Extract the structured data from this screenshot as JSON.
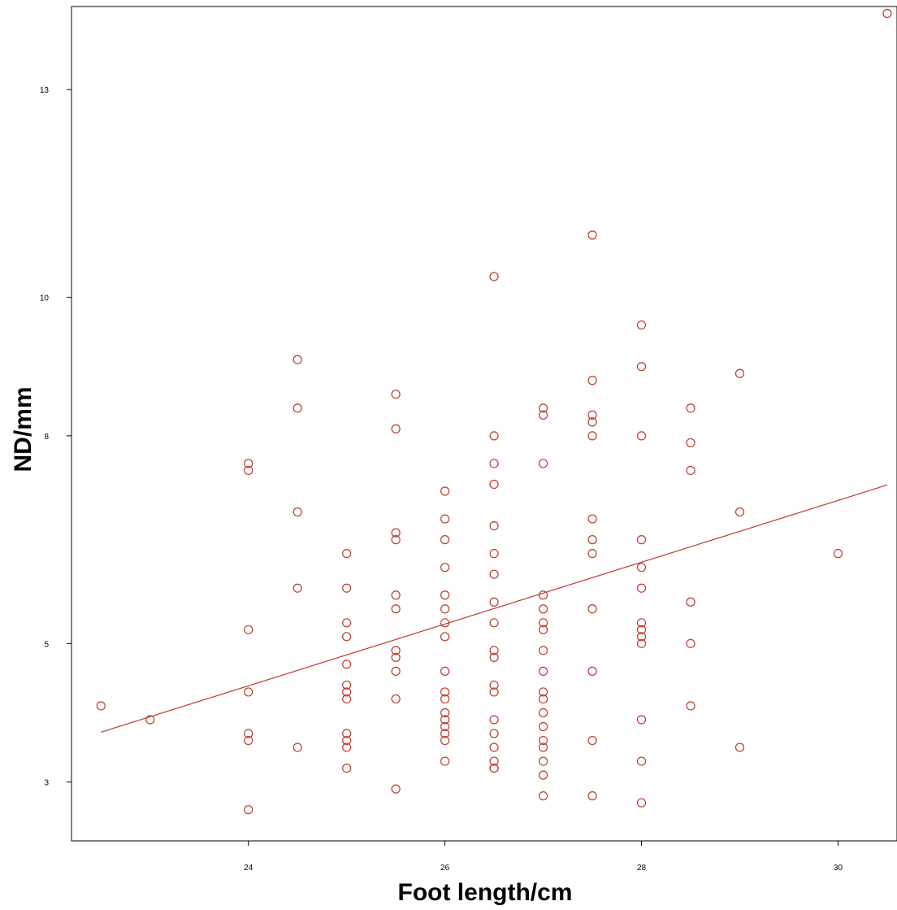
{
  "chart_data": {
    "type": "scatter",
    "title": "",
    "xlabel": "Foot length/cm",
    "ylabel": "ND/mm",
    "xlim": [
      22.2,
      30.6
    ],
    "ylim": [
      2.15,
      14.2
    ],
    "x_ticks": [
      24,
      26,
      28,
      30
    ],
    "y_ticks": [
      3,
      5,
      8,
      10,
      13
    ],
    "x_tick_labels": [
      "24",
      "26",
      "28",
      "30"
    ],
    "y_tick_labels": [
      "3",
      "5",
      "8",
      "10",
      "13"
    ],
    "grid": false,
    "legend": "none",
    "marker_color": "#c0392b",
    "line_color": "#c0392b",
    "fit_line": {
      "x": [
        22.5,
        30.5
      ],
      "y": [
        3.72,
        7.29
      ]
    },
    "points": [
      [
        22.5,
        4.1
      ],
      [
        23.0,
        3.9
      ],
      [
        24.0,
        7.6
      ],
      [
        24.0,
        7.5
      ],
      [
        24.0,
        5.2
      ],
      [
        24.0,
        4.3
      ],
      [
        24.0,
        3.7
      ],
      [
        24.0,
        3.6
      ],
      [
        24.0,
        2.6
      ],
      [
        24.5,
        9.1
      ],
      [
        24.5,
        8.4
      ],
      [
        24.5,
        6.9
      ],
      [
        24.5,
        5.8
      ],
      [
        24.5,
        3.5
      ],
      [
        25.0,
        6.3
      ],
      [
        25.0,
        5.8
      ],
      [
        25.0,
        5.3
      ],
      [
        25.0,
        5.1
      ],
      [
        25.0,
        4.7
      ],
      [
        25.0,
        4.4
      ],
      [
        25.0,
        4.3
      ],
      [
        25.0,
        4.2
      ],
      [
        25.0,
        3.7
      ],
      [
        25.0,
        3.6
      ],
      [
        25.0,
        3.5
      ],
      [
        25.0,
        3.2
      ],
      [
        25.5,
        8.6
      ],
      [
        25.5,
        8.1
      ],
      [
        25.5,
        6.6
      ],
      [
        25.5,
        6.5
      ],
      [
        25.5,
        5.7
      ],
      [
        25.5,
        5.5
      ],
      [
        25.5,
        4.9
      ],
      [
        25.5,
        4.8
      ],
      [
        25.5,
        4.6
      ],
      [
        25.5,
        4.2
      ],
      [
        25.5,
        2.9
      ],
      [
        26.0,
        7.2
      ],
      [
        26.0,
        6.8
      ],
      [
        26.0,
        6.5
      ],
      [
        26.0,
        6.1
      ],
      [
        26.0,
        5.7
      ],
      [
        26.0,
        5.5
      ],
      [
        26.0,
        5.3
      ],
      [
        26.0,
        5.1
      ],
      [
        26.0,
        4.6
      ],
      [
        26.0,
        4.3
      ],
      [
        26.0,
        4.2
      ],
      [
        26.0,
        4.0
      ],
      [
        26.0,
        3.9
      ],
      [
        26.0,
        3.8
      ],
      [
        26.0,
        3.7
      ],
      [
        26.0,
        3.6
      ],
      [
        26.0,
        3.3
      ],
      [
        26.5,
        10.3
      ],
      [
        26.5,
        8.0
      ],
      [
        26.5,
        7.6
      ],
      [
        26.5,
        7.3
      ],
      [
        26.5,
        6.7
      ],
      [
        26.5,
        6.3
      ],
      [
        26.5,
        6.0
      ],
      [
        26.5,
        5.6
      ],
      [
        26.5,
        5.3
      ],
      [
        26.5,
        4.9
      ],
      [
        26.5,
        4.8
      ],
      [
        26.5,
        4.4
      ],
      [
        26.5,
        4.3
      ],
      [
        26.5,
        3.9
      ],
      [
        26.5,
        3.7
      ],
      [
        26.5,
        3.5
      ],
      [
        26.5,
        3.3
      ],
      [
        26.5,
        3.2
      ],
      [
        26.5,
        3.2
      ],
      [
        27.0,
        8.4
      ],
      [
        27.0,
        8.3
      ],
      [
        27.0,
        7.6
      ],
      [
        27.0,
        5.7
      ],
      [
        27.0,
        5.5
      ],
      [
        27.0,
        5.3
      ],
      [
        27.0,
        5.2
      ],
      [
        27.0,
        4.9
      ],
      [
        27.0,
        4.6
      ],
      [
        27.0,
        4.3
      ],
      [
        27.0,
        4.2
      ],
      [
        27.0,
        4.0
      ],
      [
        27.0,
        3.8
      ],
      [
        27.0,
        3.6
      ],
      [
        27.0,
        3.5
      ],
      [
        27.0,
        3.3
      ],
      [
        27.0,
        3.1
      ],
      [
        27.0,
        2.8
      ],
      [
        27.5,
        10.9
      ],
      [
        27.5,
        8.8
      ],
      [
        27.5,
        8.3
      ],
      [
        27.5,
        8.2
      ],
      [
        27.5,
        8.0
      ],
      [
        27.5,
        6.8
      ],
      [
        27.5,
        6.5
      ],
      [
        27.5,
        6.3
      ],
      [
        27.5,
        5.5
      ],
      [
        27.5,
        4.6
      ],
      [
        27.5,
        3.6
      ],
      [
        27.5,
        2.8
      ],
      [
        28.0,
        9.6
      ],
      [
        28.0,
        9.0
      ],
      [
        28.0,
        8.0
      ],
      [
        28.0,
        6.5
      ],
      [
        28.0,
        6.1
      ],
      [
        28.0,
        5.8
      ],
      [
        28.0,
        5.3
      ],
      [
        28.0,
        5.2
      ],
      [
        28.0,
        5.1
      ],
      [
        28.0,
        5.0
      ],
      [
        28.0,
        3.9
      ],
      [
        28.0,
        3.3
      ],
      [
        28.0,
        2.7
      ],
      [
        28.5,
        8.4
      ],
      [
        28.5,
        7.9
      ],
      [
        28.5,
        7.5
      ],
      [
        28.5,
        5.6
      ],
      [
        28.5,
        5.0
      ],
      [
        28.5,
        4.1
      ],
      [
        29.0,
        8.9
      ],
      [
        29.0,
        6.9
      ],
      [
        29.0,
        3.5
      ],
      [
        30.0,
        6.3
      ],
      [
        30.5,
        14.1
      ]
    ]
  }
}
